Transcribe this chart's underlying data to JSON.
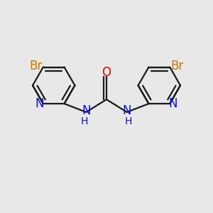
{
  "background_color": "#e8e8e8",
  "bond_color": "#1a1a1a",
  "N_color": "#1010dd",
  "O_color": "#dd0000",
  "Br_color": "#cc7700",
  "figsize": [
    3.0,
    3.0
  ],
  "dpi": 100,
  "xlim": [
    -1.5,
    1.5
  ],
  "ylim": [
    -1.1,
    1.1
  ]
}
